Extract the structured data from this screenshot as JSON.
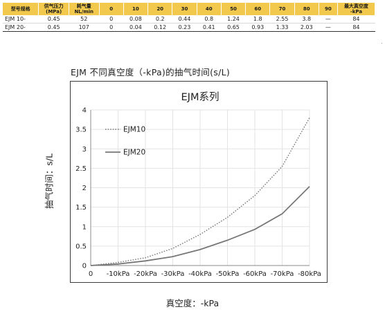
{
  "spec_table": {
    "headers": [
      "型号规格",
      "供气压力\n(MPa)",
      "耗气量\nNL/min",
      "0",
      "10",
      "20",
      "30",
      "40",
      "50",
      "60",
      "70",
      "80",
      "90",
      "最大真空度\n-kPa"
    ],
    "rows": [
      [
        "EJM 10-",
        "0.45",
        "52",
        "0",
        "0.08",
        "0.2",
        "0.44",
        "0.8",
        "1.24",
        "1.8",
        "2.55",
        "3.8",
        "—",
        "84"
      ],
      [
        "EJM 20-",
        "0.45",
        "107",
        "0",
        "0.04",
        "0.12",
        "0.23",
        "0.41",
        "0.65",
        "0.93",
        "1.33",
        "2.03",
        "—",
        "84"
      ]
    ]
  },
  "chart_heading": "EJM 不同真空度（-kPa)的抽气时间(s/L)",
  "chart_data": {
    "type": "line",
    "title": "EJM系列",
    "xlabel": "真空度：-kPa",
    "ylabel": "抽气时间：s/L",
    "categories": [
      "0",
      "-10kPa",
      "-20kPa",
      "-30kPa",
      "-40kPa",
      "-50kPa",
      "-60kPa",
      "-70kPa",
      "-80kPa"
    ],
    "ylim": [
      0,
      4
    ],
    "yticks": [
      "0",
      "0.5",
      "1",
      "1.5",
      "2",
      "2.5",
      "3",
      "3.5",
      "4"
    ],
    "grid": true,
    "legend_position": "top-left",
    "series": [
      {
        "name": "EJM10",
        "values": [
          0,
          0.08,
          0.2,
          0.44,
          0.8,
          1.24,
          1.8,
          2.55,
          3.8
        ],
        "color": "#777777",
        "style": "dotted"
      },
      {
        "name": "EJM20",
        "values": [
          0,
          0.04,
          0.12,
          0.23,
          0.41,
          0.65,
          0.93,
          1.33,
          2.03
        ],
        "color": "#777777",
        "style": "solid"
      }
    ]
  },
  "colors": {
    "table_header": "#f2c94c",
    "grid": "#e3e3e3",
    "axis": "#8a8a8a",
    "frame": "#3a3a3a"
  }
}
